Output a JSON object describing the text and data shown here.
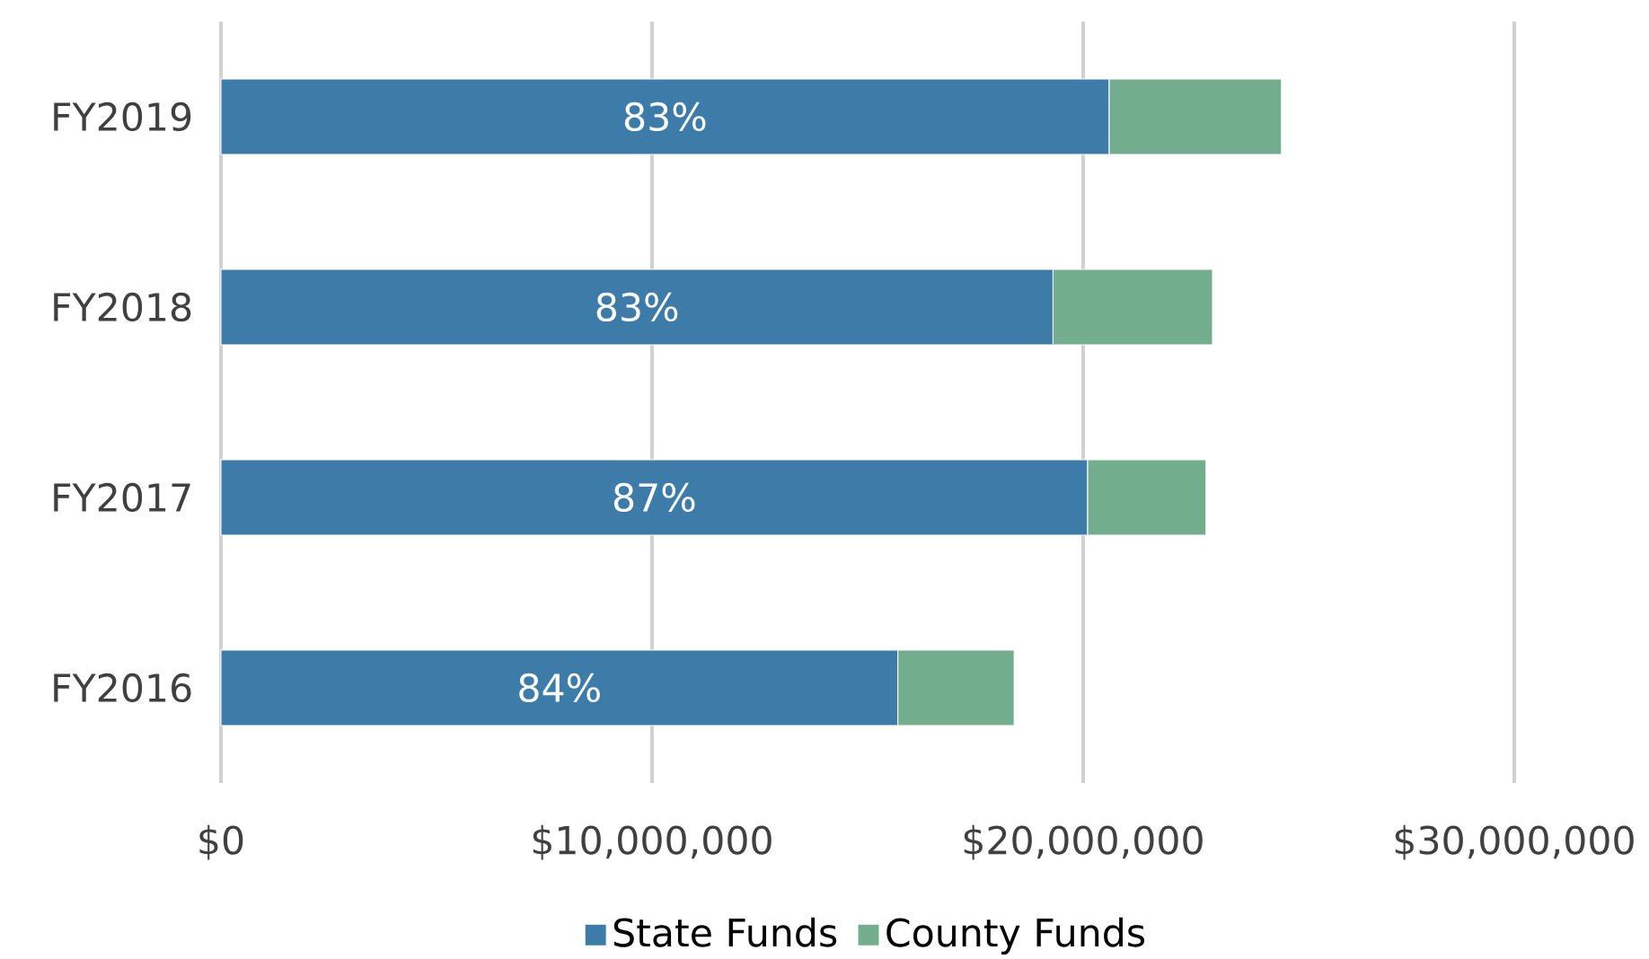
{
  "chart_data": {
    "type": "bar",
    "orientation": "horizontal",
    "stacked": true,
    "categories": [
      "FY2019",
      "FY2018",
      "FY2017",
      "FY2016"
    ],
    "series": [
      {
        "name": "State Funds",
        "color": "#3d7ca8",
        "values": [
          20600000,
          19300000,
          20100000,
          15700000
        ]
      },
      {
        "name": "County Funds",
        "color": "#72ad8d",
        "values": [
          4000000,
          3700000,
          2750000,
          2700000
        ]
      }
    ],
    "xlim": [
      0,
      30000000
    ],
    "xticks": [
      {
        "value": 0,
        "label": "$0"
      },
      {
        "value": 10000000,
        "label": "$10,000,000"
      },
      {
        "value": 20000000,
        "label": "$20,000,000"
      },
      {
        "value": 30000000,
        "label": "$30,000,000"
      }
    ],
    "annotations": [
      "83%",
      "83%",
      "87%",
      "84%"
    ],
    "grid": "x",
    "legend": "bottom"
  }
}
